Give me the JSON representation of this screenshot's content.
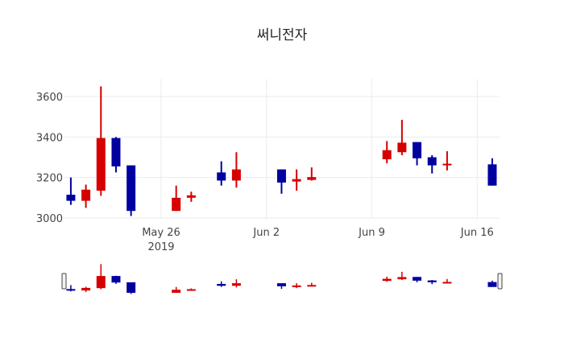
{
  "chart_data": {
    "type": "candlestick",
    "title": "써니전자",
    "xlabel": "",
    "ylabel": "",
    "ylim": [
      2990,
      3680
    ],
    "yticks": [
      3000,
      3200,
      3400,
      3600
    ],
    "xticks": [
      {
        "date": "2019-05-26",
        "label": "May 26",
        "sublabel": "2019"
      },
      {
        "date": "2019-06-02",
        "label": "Jun 2",
        "sublabel": ""
      },
      {
        "date": "2019-06-09",
        "label": "Jun 9",
        "sublabel": ""
      },
      {
        "date": "2019-06-16",
        "label": "Jun 16",
        "sublabel": ""
      }
    ],
    "xrange": [
      "2019-05-19T12:00",
      "2019-06-17T12:00"
    ],
    "grid": true,
    "rangeslider": true,
    "colors": {
      "increasing": "#d60000",
      "decreasing": "#0000a0",
      "grid": "#ebebeb"
    },
    "candles": [
      {
        "date": "2019-05-20",
        "open": 3115,
        "high": 3200,
        "low": 3065,
        "close": 3085
      },
      {
        "date": "2019-05-21",
        "open": 3085,
        "high": 3165,
        "low": 3050,
        "close": 3140
      },
      {
        "date": "2019-05-22",
        "open": 3135,
        "high": 3650,
        "low": 3110,
        "close": 3395
      },
      {
        "date": "2019-05-23",
        "open": 3395,
        "high": 3400,
        "low": 3225,
        "close": 3255
      },
      {
        "date": "2019-05-24",
        "open": 3260,
        "high": 3260,
        "low": 3010,
        "close": 3035
      },
      {
        "date": "2019-05-27",
        "open": 3035,
        "high": 3160,
        "low": 3035,
        "close": 3100
      },
      {
        "date": "2019-05-28",
        "open": 3100,
        "high": 3130,
        "low": 3080,
        "close": 3112
      },
      {
        "date": "2019-05-30",
        "open": 3225,
        "high": 3280,
        "low": 3160,
        "close": 3185
      },
      {
        "date": "2019-05-31",
        "open": 3185,
        "high": 3325,
        "low": 3150,
        "close": 3240
      },
      {
        "date": "2019-06-03",
        "open": 3240,
        "high": 3240,
        "low": 3120,
        "close": 3175
      },
      {
        "date": "2019-06-04",
        "open": 3180,
        "high": 3240,
        "low": 3135,
        "close": 3192
      },
      {
        "date": "2019-06-05",
        "open": 3188,
        "high": 3250,
        "low": 3185,
        "close": 3202
      },
      {
        "date": "2019-06-10",
        "open": 3290,
        "high": 3380,
        "low": 3270,
        "close": 3335
      },
      {
        "date": "2019-06-11",
        "open": 3325,
        "high": 3485,
        "low": 3310,
        "close": 3372
      },
      {
        "date": "2019-06-12",
        "open": 3375,
        "high": 3375,
        "low": 3260,
        "close": 3295
      },
      {
        "date": "2019-06-13",
        "open": 3300,
        "high": 3310,
        "low": 3220,
        "close": 3260
      },
      {
        "date": "2019-06-14",
        "open": 3260,
        "high": 3330,
        "low": 3235,
        "close": 3268
      },
      {
        "date": "2019-06-17",
        "open": 3265,
        "high": 3295,
        "low": 3160,
        "close": 3160
      }
    ]
  }
}
